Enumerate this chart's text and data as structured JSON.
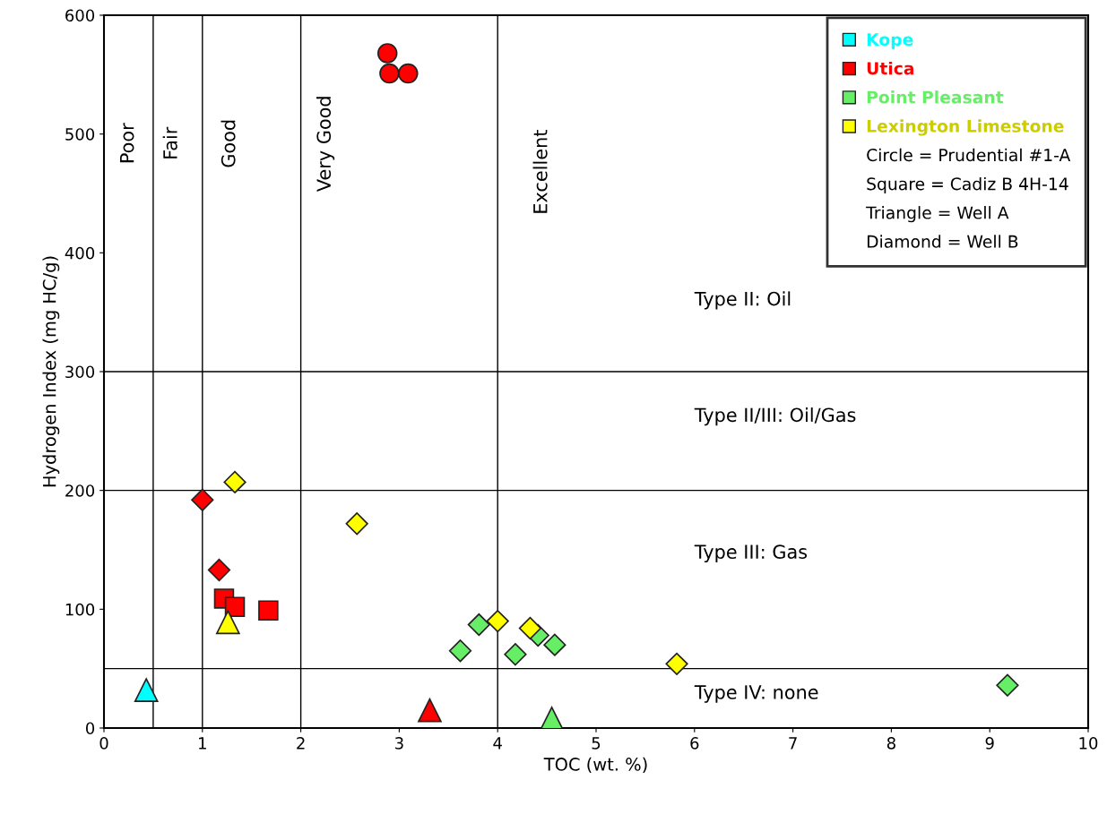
{
  "chart_data": {
    "type": "scatter",
    "xlabel": "TOC (wt. %)",
    "ylabel": "Hydrogen Index (mg HC/g)",
    "xlim": [
      0,
      10
    ],
    "ylim": [
      0,
      600
    ],
    "xticks": [
      0,
      1,
      2,
      3,
      4,
      5,
      6,
      7,
      8,
      9,
      10
    ],
    "yticks": [
      0,
      100,
      200,
      300,
      400,
      500,
      600
    ],
    "grid": false,
    "legend": "top right",
    "series": [
      {
        "name": "Kope",
        "color": "#00ffff",
        "marker": "triangle",
        "x": [
          0.43
        ],
        "values": [
          32
        ]
      },
      {
        "name": "Utica",
        "color": "#ff0000",
        "marker": "circle",
        "x": [
          2.88,
          2.9,
          3.09
        ],
        "values": [
          568,
          551,
          551
        ]
      },
      {
        "color": "#ff0000",
        "marker": "diamond",
        "x": [
          1.0,
          1.17
        ],
        "values": [
          192,
          133
        ]
      },
      {
        "color": "#ff0000",
        "marker": "square",
        "x": [
          1.22,
          1.33,
          1.67
        ],
        "values": [
          109,
          102,
          99
        ]
      },
      {
        "color": "#ff0000",
        "marker": "triangle",
        "x": [
          3.31
        ],
        "values": [
          15
        ]
      },
      {
        "name": "Point Pleasant",
        "color": "#66ee66",
        "marker": "diamond",
        "x": [
          3.62,
          3.81,
          4.18,
          4.41,
          4.58,
          9.18
        ],
        "values": [
          65,
          87,
          62,
          78,
          70,
          36
        ]
      },
      {
        "color": "#66ee66",
        "marker": "triangle",
        "x": [
          4.55
        ],
        "values": [
          8
        ]
      },
      {
        "name": "Lexington Limestone",
        "color": "#ffff00",
        "marker": "diamond",
        "x": [
          1.33,
          2.57,
          4.0,
          4.33,
          5.82
        ],
        "values": [
          207,
          172,
          90,
          84,
          54
        ]
      },
      {
        "color": "#ffff00",
        "marker": "triangle",
        "x": [
          1.26
        ],
        "values": [
          89
        ]
      }
    ],
    "ref_lines": [
      {
        "axis": "x",
        "value": 0.5
      },
      {
        "axis": "x",
        "value": 1
      },
      {
        "axis": "x",
        "value": 2
      },
      {
        "axis": "x",
        "value": 4
      },
      {
        "axis": "y",
        "value": 50
      },
      {
        "axis": "y",
        "value": 200
      },
      {
        "axis": "y",
        "value": 300
      }
    ],
    "annotations": [
      "Circle = Prudential #1-A",
      "Square = Cadiz B 4H-14",
      "Triangle = Well A",
      "Diamond = Well B",
      "Poor",
      "Fair",
      "Good",
      "Very Good",
      "Excellent",
      "Type II: Oil",
      "Type II/III: Oil/Gas",
      "Type III: Gas",
      "Type IV: none"
    ]
  }
}
